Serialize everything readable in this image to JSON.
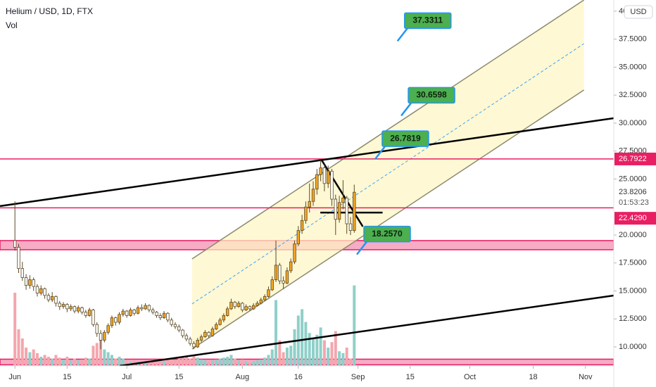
{
  "chart_data": {
    "type": "candlestick",
    "title": "Helium / USD, 1D, FTX",
    "subtitle": "Vol",
    "currency": "USD",
    "xlim": [
      -4,
      160.6
    ],
    "ylim": [
      8.3,
      41.0
    ],
    "xticks": [
      {
        "value": 0,
        "label": "Jun"
      },
      {
        "value": 14,
        "label": "15"
      },
      {
        "value": 30,
        "label": "Jul"
      },
      {
        "value": 44,
        "label": "15"
      },
      {
        "value": 61,
        "label": "Aug"
      },
      {
        "value": 76,
        "label": "16"
      },
      {
        "value": 92,
        "label": "Sep"
      },
      {
        "value": 106,
        "label": "15"
      },
      {
        "value": 122,
        "label": "Oct"
      },
      {
        "value": 139,
        "label": "18"
      },
      {
        "value": 153,
        "label": "Nov"
      }
    ],
    "yticks": [
      {
        "value": 10,
        "label": "10.0000"
      },
      {
        "value": 12.5,
        "label": "12.5000"
      },
      {
        "value": 15,
        "label": "15.0000"
      },
      {
        "value": 17.5,
        "label": "17.5000"
      },
      {
        "value": 20,
        "label": "20.0000"
      },
      {
        "value": 25,
        "label": "25.0000"
      },
      {
        "value": 27.5,
        "label": "27.5000"
      },
      {
        "value": 30,
        "label": "30.0000"
      },
      {
        "value": 32.5,
        "label": "32.5000"
      },
      {
        "value": 35,
        "label": "35.0000"
      },
      {
        "value": 37.5,
        "label": "37.5000"
      },
      40
    ],
    "up_color": "#f5a623",
    "down_color": "#ffffff",
    "outline_color": "#5b4a25",
    "volume_up_color": "#8fd0c9",
    "volume_down_color": "#f4a6ad",
    "volume_lim": [
      0,
      100
    ],
    "x": [
      0,
      1,
      2,
      3,
      4,
      5,
      6,
      7,
      8,
      9,
      10,
      11,
      12,
      13,
      14,
      15,
      16,
      17,
      18,
      19,
      20,
      21,
      22,
      23,
      24,
      25,
      26,
      27,
      28,
      29,
      30,
      31,
      32,
      33,
      34,
      35,
      36,
      37,
      38,
      39,
      40,
      41,
      42,
      43,
      44,
      45,
      46,
      47,
      48,
      49,
      50,
      51,
      52,
      53,
      54,
      55,
      56,
      57,
      58,
      59,
      60,
      61,
      62,
      63,
      64,
      65,
      66,
      67,
      68,
      69,
      70,
      71,
      72,
      73,
      74,
      75,
      76,
      77,
      78,
      79,
      80,
      81,
      82,
      83,
      84,
      85,
      86,
      87,
      88,
      89,
      90,
      91
    ],
    "ohlc": [
      [
        19.5,
        23.0,
        18.6,
        18.9
      ],
      [
        18.9,
        19.2,
        16.6,
        17.0
      ],
      [
        17.0,
        17.6,
        15.9,
        16.2
      ],
      [
        16.2,
        16.5,
        15.1,
        15.5
      ],
      [
        15.5,
        16.4,
        15.2,
        16.0
      ],
      [
        16.0,
        16.2,
        15.0,
        15.4
      ],
      [
        15.4,
        15.6,
        14.5,
        14.8
      ],
      [
        14.8,
        15.5,
        14.6,
        15.2
      ],
      [
        15.2,
        15.3,
        14.3,
        14.6
      ],
      [
        14.6,
        14.8,
        14.0,
        14.2
      ],
      [
        14.2,
        14.9,
        14.0,
        14.5
      ],
      [
        14.5,
        14.6,
        13.6,
        13.9
      ],
      [
        13.9,
        14.1,
        13.3,
        13.6
      ],
      [
        13.6,
        14.0,
        13.4,
        13.8
      ],
      [
        13.8,
        13.9,
        13.1,
        13.4
      ],
      [
        13.4,
        13.8,
        13.2,
        13.6
      ],
      [
        13.6,
        13.7,
        13.0,
        13.2
      ],
      [
        13.2,
        13.7,
        13.0,
        13.5
      ],
      [
        13.5,
        13.6,
        12.9,
        13.1
      ],
      [
        13.1,
        13.3,
        12.6,
        12.8
      ],
      [
        12.8,
        13.5,
        12.7,
        13.3
      ],
      [
        13.3,
        13.4,
        11.8,
        12.0
      ],
      [
        12.0,
        12.2,
        10.9,
        11.2
      ],
      [
        11.2,
        11.5,
        9.8,
        10.6
      ],
      [
        10.6,
        11.5,
        10.4,
        11.3
      ],
      [
        11.3,
        12.1,
        11.1,
        11.9
      ],
      [
        11.9,
        12.8,
        11.7,
        12.6
      ],
      [
        12.6,
        12.7,
        11.9,
        12.2
      ],
      [
        12.2,
        13.1,
        12.0,
        12.9
      ],
      [
        12.9,
        13.4,
        12.7,
        13.2
      ],
      [
        13.2,
        13.3,
        12.6,
        12.8
      ],
      [
        12.8,
        13.5,
        12.7,
        13.3
      ],
      [
        13.3,
        13.4,
        12.8,
        13.0
      ],
      [
        13.0,
        13.7,
        12.9,
        13.5
      ],
      [
        13.5,
        13.8,
        13.2,
        13.4
      ],
      [
        13.4,
        13.9,
        13.3,
        13.7
      ],
      [
        13.7,
        13.8,
        13.1,
        13.3
      ],
      [
        13.3,
        13.5,
        12.9,
        13.1
      ],
      [
        13.1,
        13.2,
        12.6,
        12.8
      ],
      [
        12.8,
        13.0,
        12.4,
        12.6
      ],
      [
        12.6,
        13.2,
        12.5,
        13.0
      ],
      [
        13.0,
        13.1,
        12.2,
        12.4
      ],
      [
        12.4,
        12.6,
        11.8,
        12.0
      ],
      [
        12.0,
        12.2,
        11.6,
        11.8
      ],
      [
        11.8,
        12.0,
        11.3,
        11.5
      ],
      [
        11.5,
        11.6,
        10.8,
        11.0
      ],
      [
        11.0,
        11.2,
        10.5,
        10.7
      ],
      [
        10.7,
        10.9,
        10.1,
        10.3
      ],
      [
        10.3,
        10.5,
        9.8,
        10.0
      ],
      [
        10.0,
        10.8,
        9.9,
        10.6
      ],
      [
        10.6,
        11.1,
        10.4,
        10.9
      ],
      [
        10.9,
        11.5,
        10.8,
        11.3
      ],
      [
        11.3,
        11.4,
        10.8,
        11.0
      ],
      [
        11.0,
        11.8,
        10.9,
        11.6
      ],
      [
        11.6,
        12.2,
        11.5,
        12.0
      ],
      [
        12.0,
        12.6,
        11.9,
        12.4
      ],
      [
        12.4,
        13.0,
        12.2,
        12.8
      ],
      [
        12.8,
        13.6,
        12.7,
        13.4
      ],
      [
        13.4,
        14.3,
        13.3,
        14.0
      ],
      [
        14.0,
        14.1,
        13.4,
        13.6
      ],
      [
        13.6,
        14.1,
        13.5,
        13.9
      ],
      [
        13.9,
        14.0,
        13.1,
        13.3
      ],
      [
        13.3,
        13.8,
        13.2,
        13.6
      ],
      [
        13.6,
        13.7,
        13.2,
        13.4
      ],
      [
        13.4,
        13.9,
        13.3,
        13.7
      ],
      [
        13.7,
        14.1,
        13.6,
        13.9
      ],
      [
        13.9,
        14.4,
        13.8,
        14.2
      ],
      [
        14.2,
        14.7,
        14.1,
        14.5
      ],
      [
        14.5,
        15.4,
        14.4,
        15.1
      ],
      [
        15.1,
        16.3,
        15.0,
        16.0
      ],
      [
        16.0,
        19.5,
        15.8,
        17.3
      ],
      [
        17.3,
        17.5,
        15.6,
        15.9
      ],
      [
        15.9,
        16.3,
        15.2,
        15.7
      ],
      [
        15.7,
        17.1,
        15.6,
        16.8
      ],
      [
        16.8,
        17.9,
        16.6,
        17.6
      ],
      [
        17.6,
        19.5,
        17.4,
        19.2
      ],
      [
        19.2,
        20.8,
        19.0,
        20.4
      ],
      [
        20.4,
        21.8,
        20.1,
        21.3
      ],
      [
        21.3,
        23.0,
        21.0,
        22.5
      ],
      [
        22.5,
        24.6,
        22.0,
        23.0
      ],
      [
        23.0,
        24.8,
        22.6,
        24.1
      ],
      [
        24.1,
        25.9,
        23.6,
        25.4
      ],
      [
        25.4,
        26.7,
        24.8,
        26.0
      ],
      [
        26.0,
        26.3,
        23.9,
        24.6
      ],
      [
        24.6,
        26.2,
        24.2,
        25.7
      ],
      [
        25.7,
        25.9,
        22.6,
        23.2
      ],
      [
        23.2,
        23.6,
        20.0,
        21.4
      ],
      [
        21.4,
        23.5,
        21.1,
        22.9
      ],
      [
        22.9,
        24.9,
        22.3,
        23.3
      ],
      [
        23.3,
        23.5,
        20.1,
        21.0
      ],
      [
        21.0,
        21.6,
        20.0,
        20.4
      ],
      [
        20.4,
        24.5,
        20.2,
        23.8206
      ]
    ],
    "volume": [
      80,
      40,
      30,
      20,
      15,
      18,
      14,
      10,
      12,
      10,
      8,
      12,
      9,
      7,
      10,
      6,
      8,
      6,
      7,
      9,
      8,
      22,
      25,
      30,
      18,
      15,
      12,
      8,
      10,
      8,
      6,
      5,
      6,
      5,
      4,
      5,
      6,
      5,
      7,
      6,
      5,
      8,
      7,
      6,
      8,
      9,
      10,
      8,
      12,
      9,
      7,
      6,
      5,
      6,
      7,
      8,
      9,
      10,
      12,
      8,
      6,
      7,
      5,
      4,
      5,
      6,
      7,
      9,
      12,
      18,
      72,
      28,
      15,
      20,
      22,
      40,
      55,
      62,
      48,
      36,
      30,
      34,
      42,
      28,
      20,
      26,
      38,
      16,
      14,
      20,
      8,
      88
    ],
    "zones": [
      [
        18.68,
        19.5
      ],
      [
        8.4,
        8.9
      ]
    ],
    "channel": {
      "upper": [
        [
          47.5,
          17.86
        ],
        [
          152.6,
          41.0
        ]
      ],
      "middle": [
        [
          47.5,
          13.84
        ],
        [
          152.6,
          37.1
        ]
      ],
      "lower": [
        [
          47.5,
          9.81
        ],
        [
          152.6,
          32.96
        ]
      ]
    },
    "trendlines": [
      [
        [
          -4,
          22.58
        ],
        [
          160.6,
          30.44
        ]
      ],
      [
        [
          28.1,
          8.3
        ],
        [
          160.6,
          14.59
        ]
      ],
      [
        [
          82.3,
          26.67
        ],
        [
          93.3,
          20.75
        ]
      ],
      [
        [
          81.9,
          22.0
        ],
        [
          98.6,
          22.0
        ]
      ]
    ],
    "hlines": [
      {
        "value": 26.7922,
        "label": "26.7922"
      },
      {
        "value": 22.429,
        "label": "22.4290"
      }
    ],
    "last_price": {
      "value": 23.8206,
      "label": "23.8206",
      "countdown": "01:53:23"
    },
    "callouts": [
      {
        "value": 37.3311,
        "label": "37.3311",
        "x": 102.6
      },
      {
        "value": 30.6598,
        "label": "30.6598",
        "x": 103.6
      },
      {
        "value": 26.7819,
        "label": "26.7819",
        "x": 96.6
      },
      {
        "value": 18.257,
        "label": "18.2570",
        "x": 91.7
      }
    ]
  }
}
